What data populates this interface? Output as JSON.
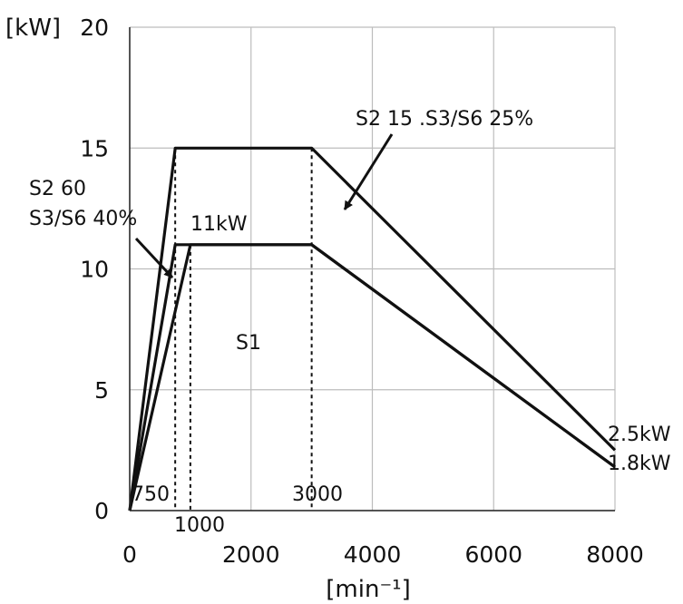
{
  "chart_data": {
    "type": "line",
    "title": "",
    "xlabel": "[min⁻¹]",
    "ylabel": "[kW]",
    "xlim": [
      0,
      8000
    ],
    "ylim": [
      0,
      20
    ],
    "x_ticks": [
      "0",
      "2000",
      "4000",
      "6000",
      "8000"
    ],
    "y_ticks": [
      "0",
      "5",
      "10",
      "15",
      "20"
    ],
    "grid": true,
    "series": [
      {
        "name": "S2 15 .S3/S6 25%",
        "points": [
          [
            0,
            0
          ],
          [
            750,
            15
          ],
          [
            3000,
            15
          ],
          [
            8000,
            2.5
          ]
        ]
      },
      {
        "name": "S2 60 S3/S6 40%",
        "points": [
          [
            0,
            0
          ],
          [
            750,
            11
          ],
          [
            3000,
            11
          ],
          [
            8000,
            1.8
          ]
        ]
      },
      {
        "name": "S1",
        "points": [
          [
            0,
            0
          ],
          [
            1000,
            11
          ],
          [
            3000,
            11
          ],
          [
            8000,
            1.8
          ]
        ]
      }
    ],
    "reference_lines": [
      {
        "x": 750,
        "y_top": 15,
        "label": "750"
      },
      {
        "x": 1000,
        "y_top": 11,
        "label": "1000"
      },
      {
        "x": 3000,
        "y_top": 15,
        "label": "3000"
      }
    ],
    "annotations": [
      {
        "id": "s2-15",
        "text": "S2 15 .S3/S6 25%"
      },
      {
        "id": "s2-60-line1",
        "text": "S2 60"
      },
      {
        "id": "s2-60-line2",
        "text": "S3/S6 40%"
      },
      {
        "id": "rated-11kw",
        "text": "11kW"
      },
      {
        "id": "s1",
        "text": "S1"
      },
      {
        "id": "end-2-5",
        "text": "2.5kW"
      },
      {
        "id": "end-1-8",
        "text": "1.8kW"
      }
    ]
  }
}
